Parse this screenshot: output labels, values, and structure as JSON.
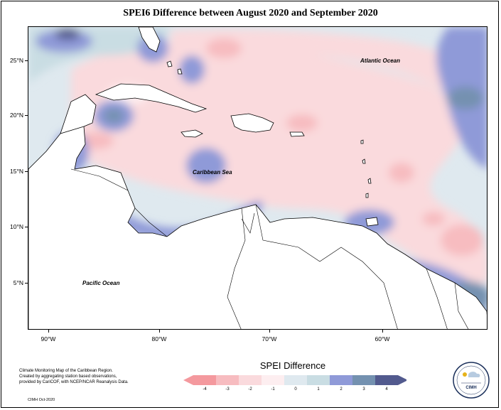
{
  "title": "SPEI6 Difference between August 2020 and September 2020",
  "map": {
    "labels": {
      "atlantic": "Atlantic Ocean",
      "caribbean": "Caribbean Sea",
      "pacific": "Pacific Ocean"
    },
    "lat_ticks": [
      "25°N",
      "20°N",
      "15°N",
      "10°N",
      "5°N"
    ],
    "lon_ticks": [
      "90°W",
      "80°W",
      "70°W",
      "60°W"
    ]
  },
  "legend": {
    "title": "SPEI Difference",
    "ticks": [
      "-4",
      "-3",
      "-2",
      "-1",
      "0",
      "1",
      "2",
      "3",
      "4"
    ],
    "colors": [
      "#f4999e",
      "#f7bcc0",
      "#fadadd",
      "#fdeef0",
      "#dfe9ef",
      "#c9dde3",
      "#8f9ad8",
      "#7491b0",
      "#525a8e"
    ]
  },
  "credit": {
    "line1": "Climate Monitoring Map of the Caribbean Region.",
    "line2": "Created by aggregating station based observations,",
    "line3": "provided by CariCOF, with NCEP/NCAR Reanalysis Data.",
    "line4": "CIMH Oct-2020"
  },
  "logo": {
    "text": "CIMH"
  }
}
